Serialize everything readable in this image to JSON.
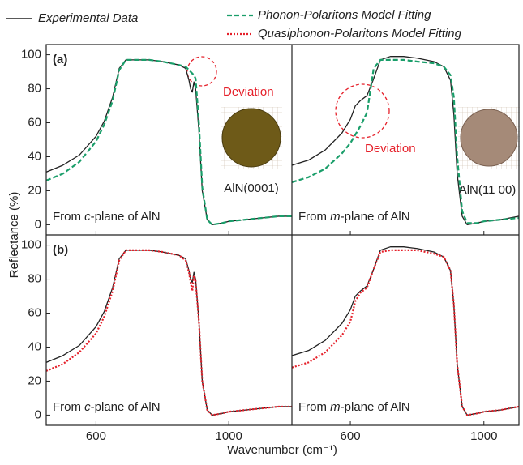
{
  "x_label": "Wavenumber (cm⁻¹)",
  "y_label": "Reflectance (%)",
  "chart_data": [
    {
      "type": "line",
      "label": "(a)",
      "plane": {
        "prefix": "From ",
        "italic": "c",
        "suffix": "-plane of AlN"
      },
      "deviation": "Deviation",
      "sample": "AlN(0001)",
      "xlim": [
        450,
        1190
      ],
      "ylim": [
        -6,
        106
      ],
      "xticks": [
        600,
        1000
      ],
      "yticks": [
        0,
        20,
        40,
        60,
        80,
        100
      ],
      "x": [
        450,
        500,
        550,
        600,
        625,
        650,
        670,
        690,
        720,
        760,
        800,
        850,
        870,
        880,
        885,
        890,
        895,
        900,
        910,
        920,
        935,
        950,
        980,
        1000,
        1050,
        1100,
        1150,
        1190
      ],
      "series": [
        {
          "name": "Experimental Data",
          "color": "#222222",
          "style": "solid",
          "values": [
            31,
            35,
            41,
            52,
            61,
            75,
            92,
            97,
            97,
            97,
            96,
            94,
            92,
            85,
            80,
            78,
            84,
            80,
            55,
            20,
            3,
            0,
            1,
            2,
            3,
            4,
            5,
            5
          ]
        },
        {
          "name": "Phonon-Polaritons Model Fitting",
          "color": "#1a9e6a",
          "style": "dashed",
          "values": [
            26,
            30,
            37,
            49,
            59,
            73,
            91,
            97,
            97,
            97,
            96,
            94,
            93,
            91,
            90,
            89,
            88,
            86,
            60,
            22,
            3,
            0,
            1,
            2,
            3,
            4,
            5,
            5
          ]
        }
      ]
    },
    {
      "type": "line",
      "plane": {
        "prefix": "From ",
        "italic": "m",
        "suffix": "-plane of AlN"
      },
      "deviation": "Deviation",
      "sample": "AlN(11̄ 00)",
      "xlim": [
        425,
        1105
      ],
      "ylim": [
        -6,
        106
      ],
      "xticks": [
        600,
        1000
      ],
      "x": [
        425,
        475,
        525,
        575,
        600,
        615,
        630,
        650,
        670,
        690,
        720,
        760,
        800,
        850,
        880,
        900,
        910,
        920,
        935,
        950,
        980,
        1000,
        1050,
        1105
      ],
      "series": [
        {
          "color": "#222222",
          "style": "solid",
          "values": [
            35,
            38,
            44,
            54,
            62,
            70,
            73,
            76,
            86,
            97,
            99,
            99,
            98,
            96,
            93,
            85,
            65,
            30,
            5,
            0,
            1,
            2,
            3,
            5
          ]
        },
        {
          "color": "#1a9e6a",
          "style": "dashed",
          "values": [
            25,
            28,
            33,
            42,
            48,
            53,
            58,
            66,
            92,
            97,
            97,
            97,
            96,
            95,
            93,
            88,
            75,
            40,
            8,
            1,
            1,
            2,
            3,
            4
          ]
        }
      ]
    },
    {
      "type": "line",
      "label": "(b)",
      "plane": {
        "prefix": "From ",
        "italic": "c",
        "suffix": "-plane of AlN"
      },
      "xlim": [
        450,
        1190
      ],
      "ylim": [
        -6,
        106
      ],
      "xticks": [
        600,
        1000
      ],
      "yticks": [
        0,
        20,
        40,
        60,
        80,
        100
      ],
      "x": [
        450,
        500,
        550,
        600,
        625,
        650,
        670,
        690,
        720,
        760,
        800,
        850,
        870,
        880,
        885,
        890,
        895,
        900,
        910,
        920,
        935,
        950,
        980,
        1000,
        1050,
        1100,
        1150,
        1190
      ],
      "series": [
        {
          "color": "#222222",
          "style": "solid",
          "values": [
            31,
            35,
            41,
            52,
            61,
            75,
            92,
            97,
            97,
            97,
            96,
            94,
            92,
            85,
            80,
            78,
            84,
            80,
            55,
            20,
            3,
            0,
            1,
            2,
            3,
            4,
            5,
            5
          ]
        },
        {
          "name": "Quasiphonon-Polaritons Model Fitting",
          "color": "#e5202a",
          "style": "dotted",
          "values": [
            26,
            30,
            37,
            48,
            58,
            73,
            91,
            97,
            97,
            97,
            96,
            94,
            91,
            84,
            78,
            73,
            82,
            79,
            55,
            20,
            3,
            0,
            1,
            2,
            3,
            4,
            5,
            5
          ]
        }
      ]
    },
    {
      "type": "line",
      "plane": {
        "prefix": "From ",
        "italic": "m",
        "suffix": "-plane of AlN"
      },
      "xlim": [
        425,
        1105
      ],
      "ylim": [
        -6,
        106
      ],
      "xticks": [
        600,
        1000
      ],
      "x": [
        425,
        475,
        525,
        575,
        600,
        615,
        630,
        650,
        670,
        690,
        720,
        760,
        800,
        850,
        880,
        900,
        910,
        920,
        935,
        950,
        980,
        1000,
        1050,
        1105
      ],
      "series": [
        {
          "color": "#222222",
          "style": "solid",
          "values": [
            35,
            38,
            44,
            54,
            62,
            70,
            73,
            76,
            86,
            97,
            99,
            99,
            98,
            96,
            93,
            85,
            65,
            30,
            5,
            0,
            1,
            2,
            3,
            5
          ]
        },
        {
          "color": "#e5202a",
          "style": "dotted",
          "values": [
            28,
            31,
            37,
            47,
            55,
            67,
            72,
            75,
            86,
            96,
            97,
            97,
            97,
            95,
            93,
            85,
            65,
            30,
            5,
            0,
            1,
            2,
            3,
            5
          ]
        }
      ]
    }
  ]
}
